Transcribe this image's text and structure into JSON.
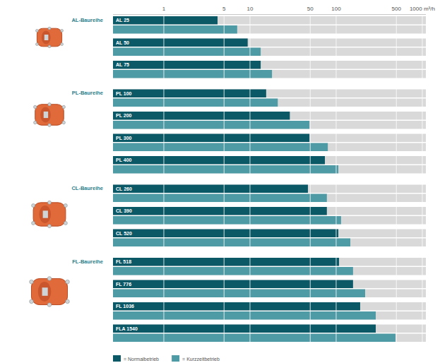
{
  "chart_data": {
    "type": "bar",
    "orientation": "horizontal",
    "log": "x",
    "grid": true,
    "data_labels": false,
    "legend": "bottom-left",
    "tick_labels": "x",
    "categories": [
      "AL 25",
      "AL 50",
      "AL 75",
      "PL 100",
      "PL 200",
      "PL 300",
      "PL 400",
      "CL 260",
      "CL 390",
      "CL 520",
      "FL 518",
      "FL 776",
      "FL 1036",
      "FLA 1540"
    ],
    "groups": [
      {
        "name": "AL-Baureihe",
        "count": 3
      },
      {
        "name": "PL-Baureihe",
        "count": 4
      },
      {
        "name": "CL-Baureihe",
        "count": 3
      },
      {
        "name": "FL-Baureihe",
        "count": 4
      }
    ],
    "series": [
      {
        "name": "= Normalbetrieb",
        "color": "#0b5866",
        "values": [
          4.2,
          9.4,
          13.3,
          15.4,
          29,
          49,
          74,
          47,
          78,
          106,
          108,
          157,
          190,
          288
        ]
      },
      {
        "name": "= Kurzzeitbetrieb",
        "color": "#4e9ba6",
        "values": [
          7.1,
          13.3,
          18,
          21,
          49,
          80,
          106,
          78,
          114,
          146,
          157,
          217,
          288,
          488
        ]
      }
    ],
    "xlim": [
      0.257,
      1100
    ],
    "xticks": [
      1,
      5,
      10,
      50,
      100,
      500,
      {
        "value": 1000,
        "label": "1000 m³/h"
      }
    ]
  }
}
